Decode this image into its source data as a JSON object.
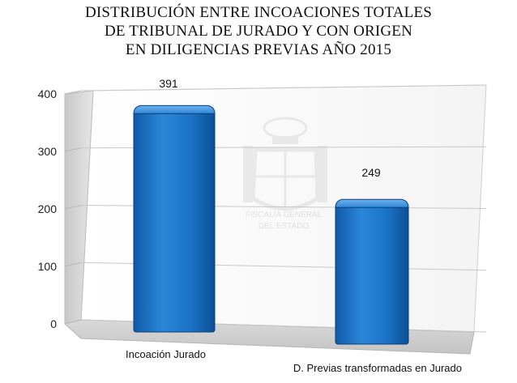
{
  "chart_data": {
    "type": "bar",
    "title_lines": [
      "DISTRIBUCIÓN ENTRE INCOACIONES TOTALES",
      "DE TRIBUNAL DE JURADO Y CON ORIGEN",
      "EN DILIGENCIAS PREVIAS AÑO 2015"
    ],
    "categories": [
      "Incoación Jurado",
      "D. Previas transformadas en Jurado"
    ],
    "values": [
      391,
      249
    ],
    "data_labels": [
      "391",
      "249"
    ],
    "y_ticks": [
      0,
      100,
      200,
      300,
      400
    ],
    "ylim": [
      0,
      400
    ],
    "grid": true,
    "bar_color": "#1a73c8",
    "style": "3d-bar",
    "watermark_lines": [
      "FISCALÍA GENERAL",
      "DEL ESTADO"
    ]
  }
}
